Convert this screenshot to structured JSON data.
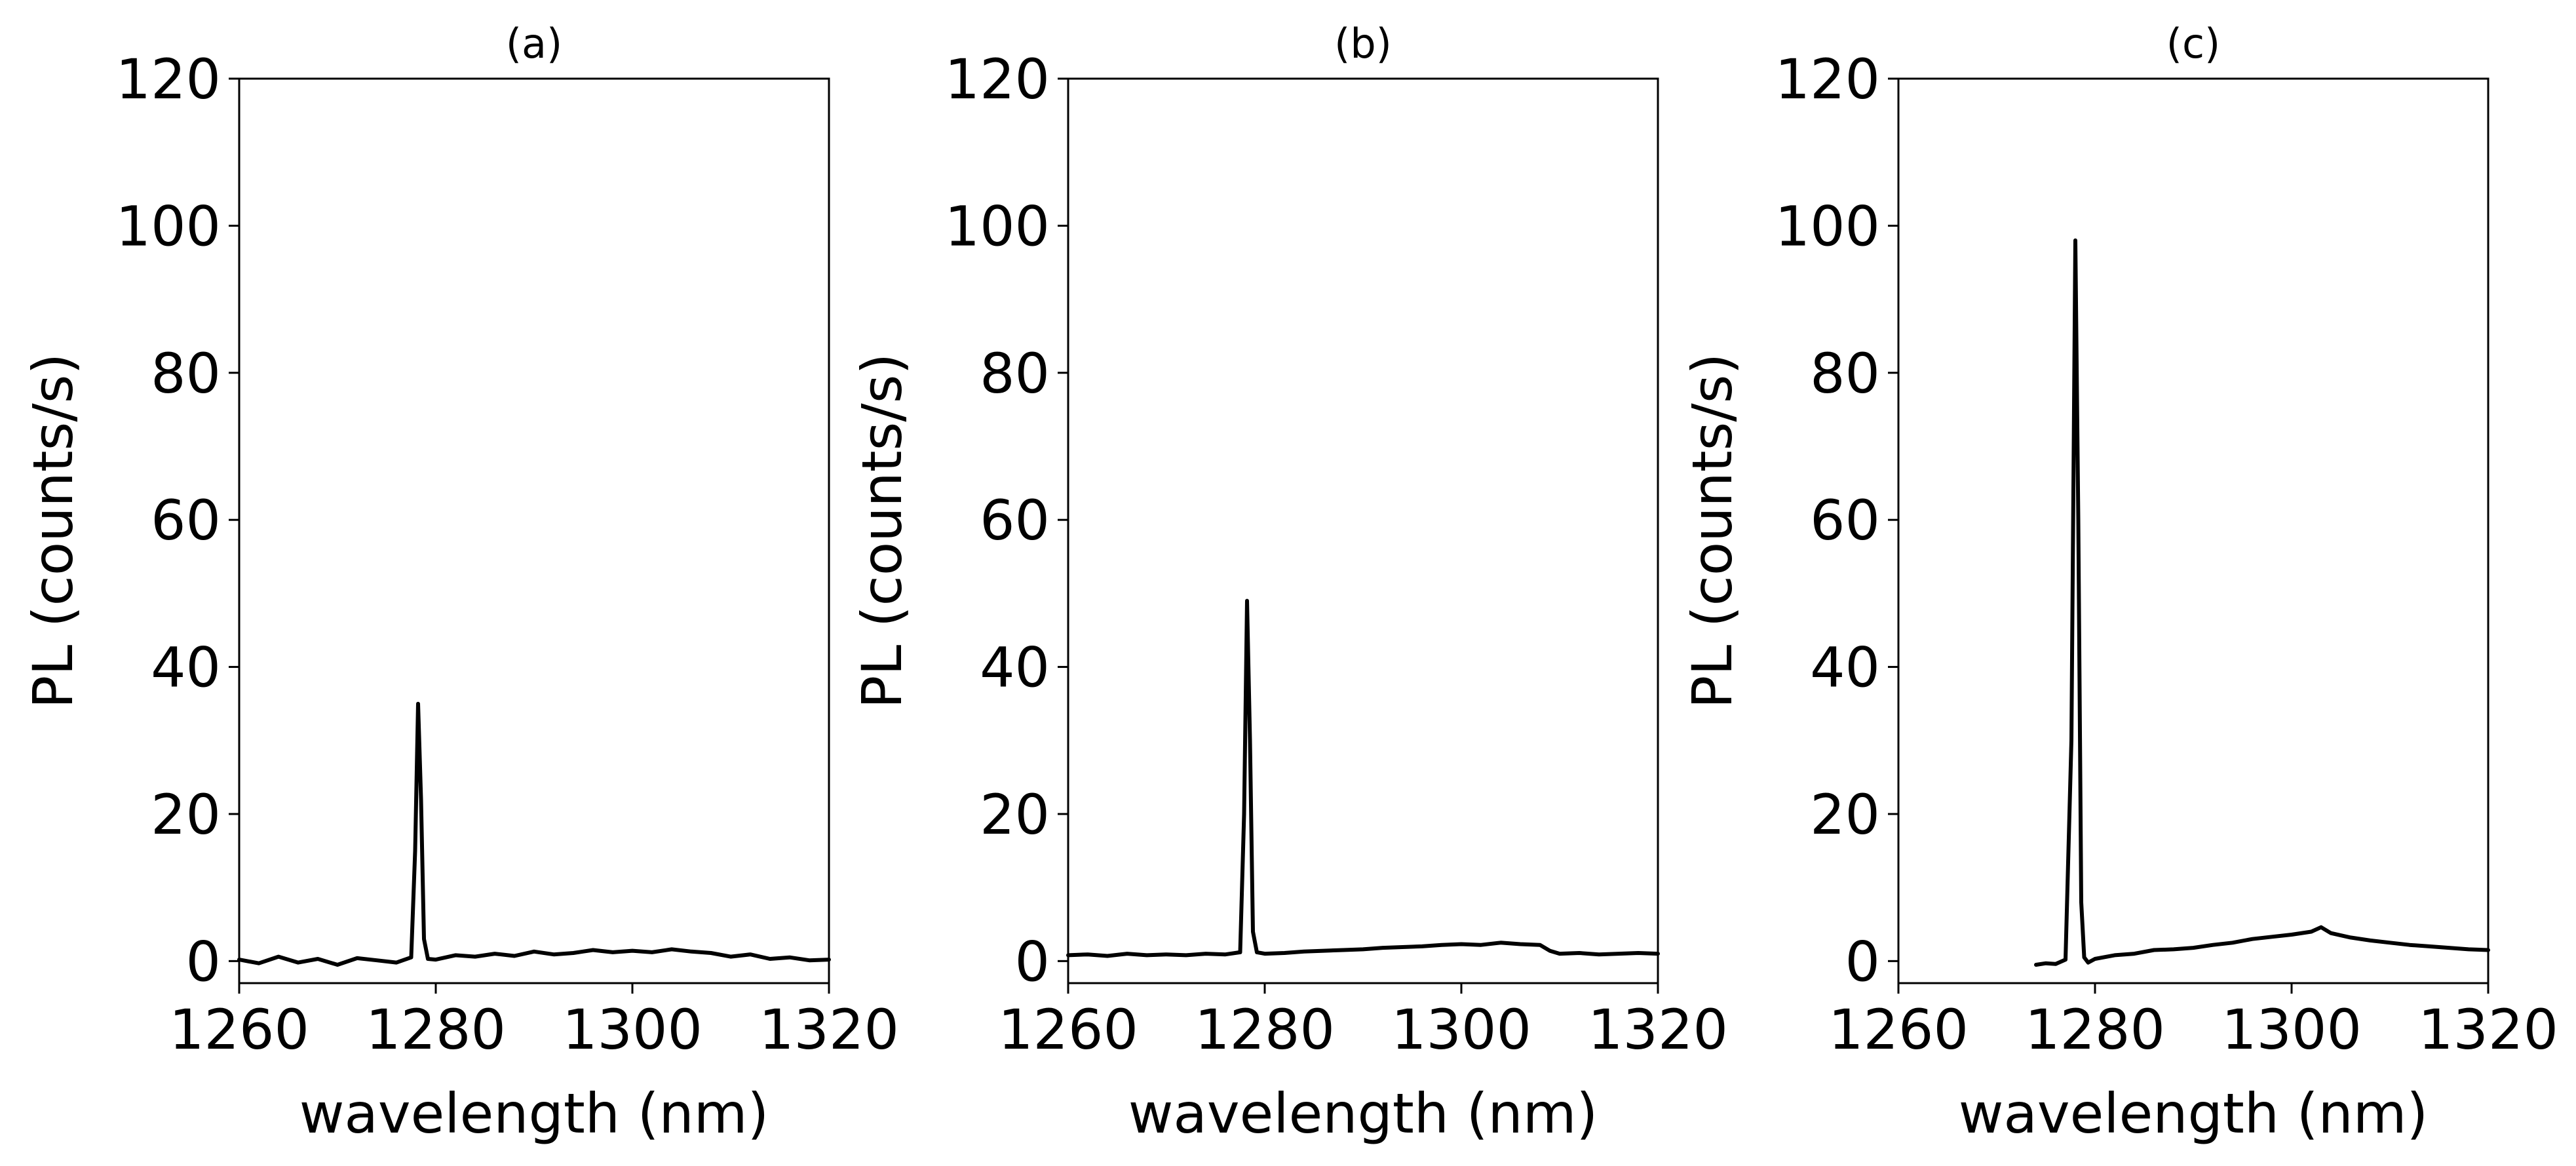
{
  "chart_data": [
    {
      "type": "line",
      "title": "(a)",
      "xlabel": "wavelength (nm)",
      "ylabel": "PL (counts/s)",
      "xlim": [
        1260,
        1320
      ],
      "ylim": [
        -3,
        120
      ],
      "xticks": [
        "1260",
        "1280",
        "1300",
        "1320"
      ],
      "yticks": [
        "0",
        "20",
        "40",
        "60",
        "80",
        "100",
        "120"
      ],
      "grid": false,
      "series": [
        {
          "color": "#000000",
          "x": [
            1260,
            1262,
            1264,
            1266,
            1268,
            1270,
            1272,
            1274,
            1276,
            1277.5,
            1277.9,
            1278.2,
            1278.5,
            1278.8,
            1279.2,
            1280,
            1282,
            1284,
            1286,
            1288,
            1290,
            1292,
            1294,
            1296,
            1298,
            1300,
            1302,
            1304,
            1306,
            1308,
            1310,
            1312,
            1314,
            1316,
            1318,
            1320
          ],
          "y": [
            0.2,
            -0.3,
            0.6,
            -0.2,
            0.3,
            -0.5,
            0.4,
            0.1,
            -0.2,
            0.5,
            15,
            35,
            22,
            3,
            0.3,
            0.2,
            0.8,
            0.6,
            1.0,
            0.7,
            1.3,
            0.9,
            1.1,
            1.5,
            1.2,
            1.4,
            1.2,
            1.6,
            1.3,
            1.1,
            0.6,
            0.9,
            0.3,
            0.5,
            0.1,
            0.2
          ]
        }
      ]
    },
    {
      "type": "line",
      "title": "(b)",
      "xlabel": "wavelength (nm)",
      "ylabel": "PL (counts/s)",
      "xlim": [
        1260,
        1320
      ],
      "ylim": [
        -3,
        120
      ],
      "xticks": [
        "1260",
        "1280",
        "1300",
        "1320"
      ],
      "yticks": [
        "0",
        "20",
        "40",
        "60",
        "80",
        "100",
        "120"
      ],
      "grid": false,
      "series": [
        {
          "color": "#000000",
          "x": [
            1260,
            1262,
            1264,
            1266,
            1268,
            1270,
            1272,
            1274,
            1276,
            1277.5,
            1277.9,
            1278.2,
            1278.5,
            1278.8,
            1279.2,
            1280,
            1282,
            1284,
            1286,
            1288,
            1290,
            1292,
            1294,
            1296,
            1298,
            1300,
            1302,
            1304,
            1306,
            1308,
            1309,
            1310,
            1312,
            1314,
            1316,
            1318,
            1320
          ],
          "y": [
            0.8,
            0.9,
            0.7,
            1.0,
            0.8,
            0.9,
            0.8,
            1.0,
            0.9,
            1.2,
            20,
            49,
            30,
            4,
            1.2,
            1.0,
            1.1,
            1.3,
            1.4,
            1.5,
            1.6,
            1.8,
            1.9,
            2.0,
            2.2,
            2.3,
            2.2,
            2.5,
            2.3,
            2.2,
            1.4,
            1.0,
            1.1,
            0.9,
            1.0,
            1.1,
            1.0
          ]
        }
      ]
    },
    {
      "type": "line",
      "title": "(c)",
      "xlabel": "wavelength (nm)",
      "ylabel": "PL (counts/s)",
      "xlim": [
        1260,
        1320
      ],
      "ylim": [
        -3,
        120
      ],
      "xticks": [
        "1260",
        "1280",
        "1300",
        "1320"
      ],
      "yticks": [
        "0",
        "20",
        "40",
        "60",
        "80",
        "100",
        "120"
      ],
      "grid": false,
      "series": [
        {
          "color": "#000000",
          "x": [
            1274,
            1275,
            1276,
            1277,
            1277.6,
            1278.0,
            1278.3,
            1278.6,
            1278.9,
            1279.3,
            1280,
            1282,
            1284,
            1286,
            1288,
            1290,
            1292,
            1294,
            1296,
            1298,
            1300,
            1302,
            1303,
            1304,
            1306,
            1308,
            1310,
            1312,
            1314,
            1316,
            1318,
            1320
          ],
          "y": [
            -0.5,
            -0.3,
            -0.4,
            0.2,
            30,
            98,
            60,
            8,
            0.5,
            -0.2,
            0.3,
            0.8,
            1.0,
            1.5,
            1.6,
            1.8,
            2.2,
            2.5,
            3.0,
            3.3,
            3.6,
            4.0,
            4.6,
            3.8,
            3.2,
            2.8,
            2.5,
            2.2,
            2.0,
            1.8,
            1.6,
            1.5
          ]
        }
      ]
    }
  ]
}
